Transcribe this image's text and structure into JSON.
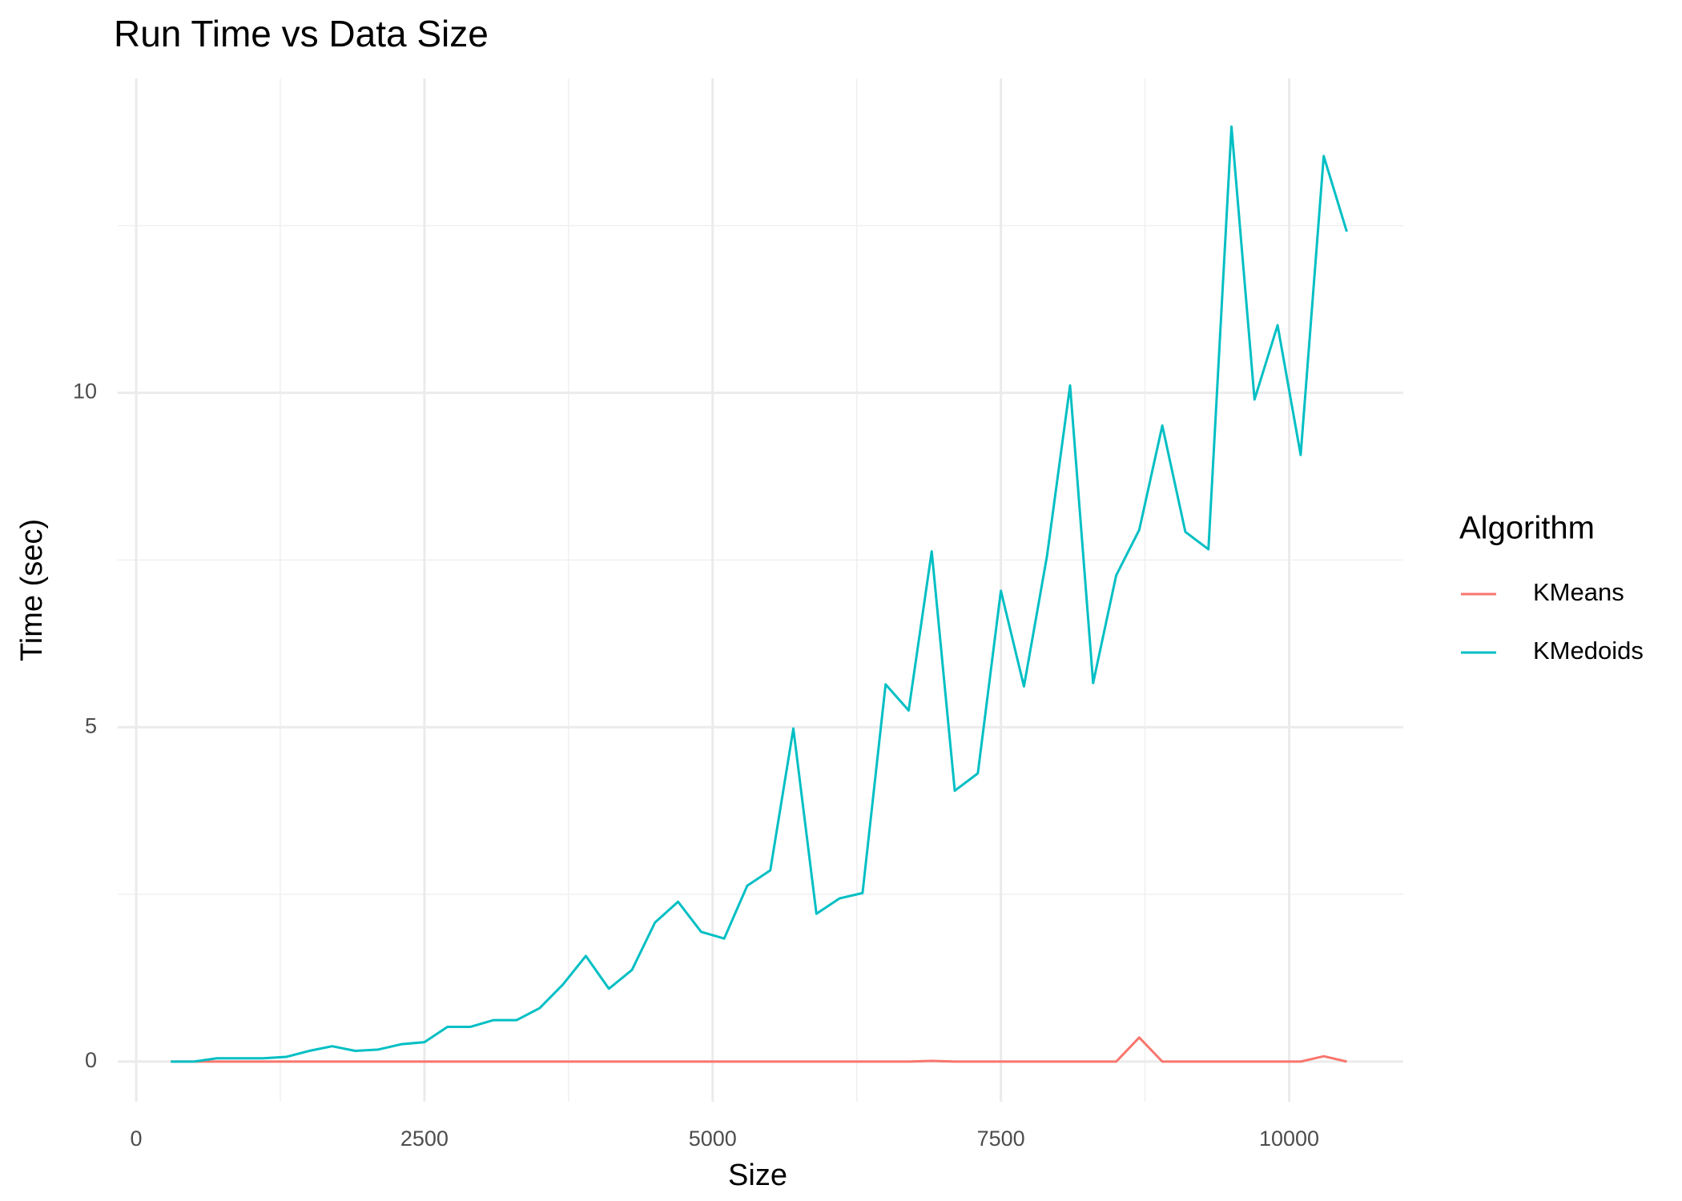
{
  "chart_data": {
    "type": "line",
    "title": "Run Time vs Data Size",
    "x_label": "Size",
    "y_label": "Time (sec)",
    "legend_title": "Algorithm",
    "legend_position": "right",
    "x": [
      300,
      500,
      700,
      900,
      1100,
      1300,
      1500,
      1700,
      1900,
      2100,
      2300,
      2500,
      2700,
      2900,
      3100,
      3300,
      3500,
      3700,
      3900,
      4100,
      4300,
      4500,
      4700,
      4900,
      5100,
      5300,
      5500,
      5700,
      5900,
      6100,
      6300,
      6500,
      6700,
      6900,
      7100,
      7300,
      7500,
      7700,
      7900,
      8100,
      8300,
      8500,
      8700,
      8900,
      9100,
      9300,
      9500,
      9700,
      9900,
      10100,
      10300,
      10500
    ],
    "series": [
      {
        "name": "KMeans",
        "color": "#f8766d",
        "values": [
          0,
          0,
          0,
          0,
          0,
          0,
          0,
          0,
          0,
          0,
          0,
          0,
          0,
          0,
          0,
          0,
          0,
          0,
          0,
          0,
          0,
          0,
          0,
          0,
          0,
          0,
          0,
          0,
          0,
          0,
          0,
          0,
          0,
          0.01,
          0,
          0,
          0,
          0,
          0,
          0,
          0,
          0,
          0.36,
          0,
          0,
          0,
          0,
          0,
          0,
          0,
          0.08,
          0
        ]
      },
      {
        "name": "KMedoids",
        "color": "#00bfc4",
        "values": [
          0,
          0,
          0.05,
          0.05,
          0.05,
          0.07,
          0.16,
          0.23,
          0.16,
          0.18,
          0.26,
          0.29,
          0.52,
          0.52,
          0.62,
          0.62,
          0.8,
          1.15,
          1.58,
          1.09,
          1.37,
          2.08,
          2.39,
          1.94,
          1.84,
          2.63,
          2.86,
          4.98,
          2.21,
          2.44,
          2.52,
          5.64,
          5.25,
          7.63,
          4.05,
          4.31,
          7.04,
          5.61,
          7.56,
          10.11,
          5.66,
          7.27,
          7.95,
          9.51,
          7.92,
          7.66,
          13.98,
          9.9,
          11.01,
          9.07,
          13.54,
          12.41
        ]
      }
    ],
    "xlim": [
      -160,
      10990
    ],
    "xticks": [
      0,
      2500,
      5000,
      7500,
      10000
    ],
    "xminor": [
      1250,
      3750,
      6250,
      8750
    ],
    "ylim": [
      -0.6,
      14.7
    ],
    "yticks": [
      0,
      5,
      10
    ],
    "yminor": [
      2.5,
      7.5,
      12.5
    ],
    "grid": true
  }
}
